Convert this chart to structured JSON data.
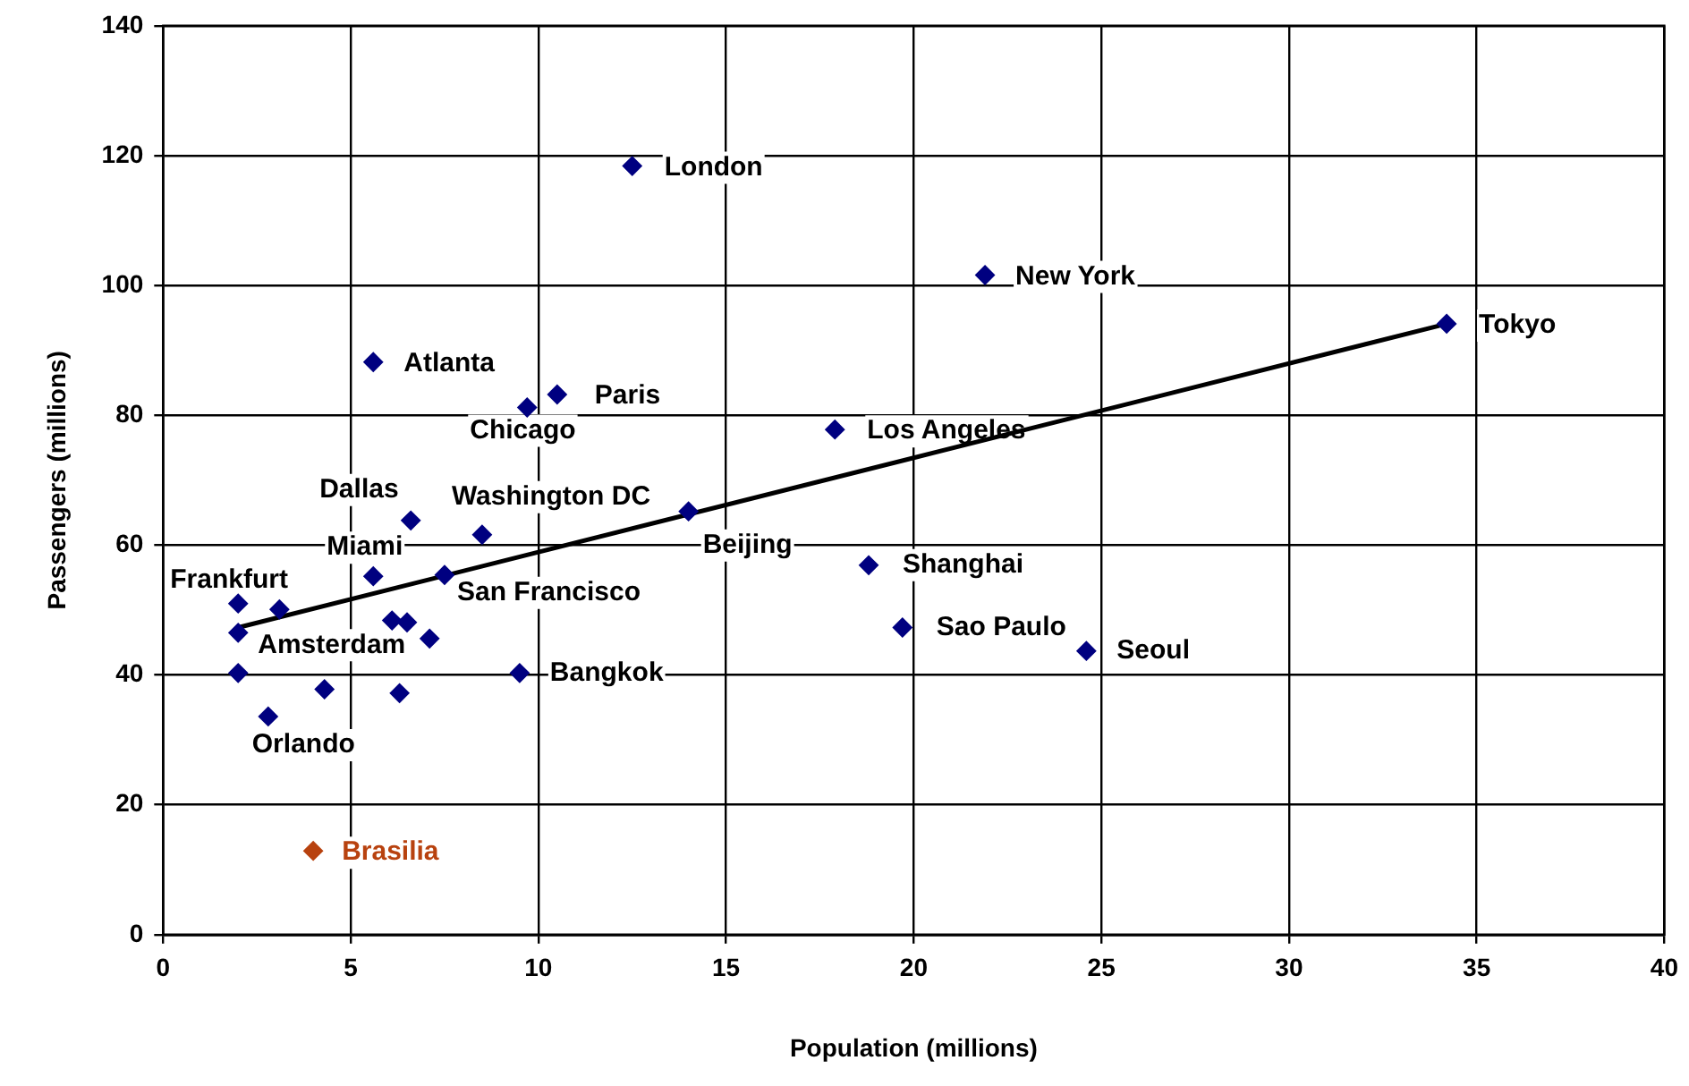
{
  "chart_data": {
    "type": "scatter",
    "xlabel": "Population (millions)",
    "ylabel": "Passengers (millions)",
    "xlim": [
      0,
      40
    ],
    "xticks": [
      0,
      5,
      10,
      15,
      20,
      25,
      30,
      35,
      40
    ],
    "ylim": [
      0,
      140
    ],
    "yticks": [
      0,
      20,
      40,
      60,
      80,
      100,
      120,
      140
    ],
    "grid": true,
    "legend": false,
    "marker": "diamond",
    "series": [
      {
        "color": "#000080",
        "x": [
          12.5,
          21.9,
          34.2,
          5.6,
          10.5,
          9.7,
          17.9,
          6.6,
          8.5,
          14.0,
          5.6,
          2.0,
          3.1,
          7.5,
          6.1,
          6.5,
          7.1,
          2.0,
          2.0,
          4.3,
          6.3,
          2.8,
          9.5,
          18.8,
          19.7,
          24.6
        ],
        "values": [
          118.4,
          101.6,
          94.1,
          88.2,
          83.2,
          81.2,
          77.8,
          63.8,
          61.6,
          65.2,
          55.2,
          51.0,
          50.1,
          55.4,
          48.4,
          48.1,
          45.6,
          46.5,
          40.3,
          37.8,
          37.2,
          33.6,
          40.3,
          56.9,
          47.3,
          43.7
        ]
      },
      {
        "name": "Brasilia",
        "color": "#b8420f",
        "x": [
          4.0
        ],
        "values": [
          12.9
        ]
      },
      {
        "type": "line",
        "color": "#000000",
        "line_style": "solid",
        "marker": "none",
        "x": [
          2.0,
          34.0
        ],
        "values": [
          47.3,
          93.8
        ]
      }
    ],
    "annotations": [
      {
        "text": "London",
        "x": 12.5,
        "y": 118.4
      },
      {
        "text": "New York",
        "x": 21.9,
        "y": 101.6
      },
      {
        "text": "Tokyo",
        "x": 34.2,
        "y": 94.1
      },
      {
        "text": "Atlanta",
        "x": 5.6,
        "y": 88.2
      },
      {
        "text": "Paris",
        "x": 10.5,
        "y": 83.2
      },
      {
        "text": "Chicago",
        "x": 9.7,
        "y": 81.2
      },
      {
        "text": "Los Angeles",
        "x": 17.9,
        "y": 77.8
      },
      {
        "text": "Dallas",
        "x": 6.6,
        "y": 63.8
      },
      {
        "text": "Washington DC",
        "x": 8.5,
        "y": 61.6
      },
      {
        "text": "Beijing",
        "x": 14.0,
        "y": 65.2
      },
      {
        "text": "Miami",
        "x": 5.6,
        "y": 55.2
      },
      {
        "text": "Frankfurt",
        "x": 2.0,
        "y": 51.0
      },
      {
        "text": "San Francisco",
        "x": 7.5,
        "y": 55.4
      },
      {
        "text": "Shanghai",
        "x": 18.8,
        "y": 56.9
      },
      {
        "text": "Amsterdam",
        "x": 2.0,
        "y": 46.5
      },
      {
        "text": "Sao Paulo",
        "x": 19.7,
        "y": 47.3
      },
      {
        "text": "Seoul",
        "x": 24.6,
        "y": 43.7
      },
      {
        "text": "Bangkok",
        "x": 9.5,
        "y": 40.3
      },
      {
        "text": "Orlando",
        "x": 2.8,
        "y": 33.6
      }
    ]
  }
}
